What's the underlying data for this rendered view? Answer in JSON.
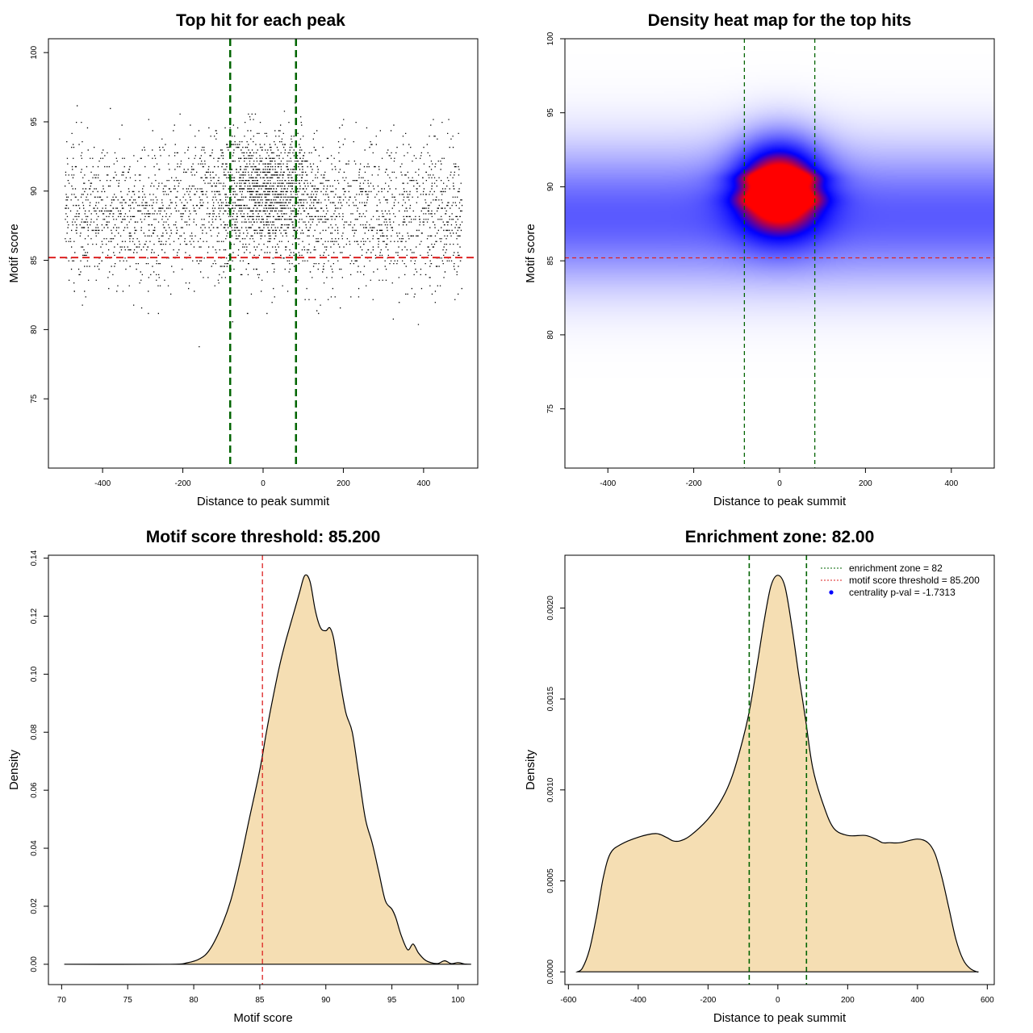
{
  "colors": {
    "points": "#000000",
    "threshold": "#dd2222",
    "zone": "#006400",
    "fill": "#f5deb3",
    "heat_low": "#ffffff",
    "heat_mid": "#0000ff",
    "heat_high": "#ff0000"
  },
  "chart_data": [
    {
      "type": "scatter",
      "title": "Top hit for each peak",
      "xlabel": "Distance to peak summit",
      "ylabel": "Motif score",
      "xlim": [
        -535,
        535
      ],
      "ylim": [
        70,
        101
      ],
      "xticks": [
        -400,
        -200,
        0,
        200,
        400
      ],
      "yticks": [
        75,
        80,
        85,
        90,
        95,
        100
      ],
      "hline": 85.2,
      "vlines": [
        -82,
        82
      ],
      "n_points": 16000,
      "x_range": [
        -495,
        495
      ],
      "score_mean": 88.5,
      "score_sd": 2.6,
      "central_fraction": 0.28,
      "central_sd": 70,
      "central_score_mean": 90.3,
      "grid": false
    },
    {
      "type": "heatmap",
      "title": "Density heat map for the top hits",
      "xlabel": "Distance to peak summit",
      "ylabel": "Motif score",
      "xlim": [
        -500,
        500
      ],
      "ylim": [
        71,
        100
      ],
      "xticks": [
        -400,
        -200,
        0,
        200,
        400
      ],
      "yticks": [
        75,
        80,
        85,
        90,
        95,
        100
      ],
      "hline": 85.2,
      "vlines": [
        -82,
        82
      ],
      "background_band": {
        "center": 88,
        "spread": 3.2,
        "strength": 0.55
      },
      "central_blob": {
        "x_center": 0,
        "x_spread": 72,
        "score_center": 90.0,
        "score_spread": 2.3,
        "strength": 1.1
      },
      "red_peaks": [
        90.6,
        89.1
      ],
      "grid": false
    },
    {
      "type": "area",
      "title": "Motif score threshold: 85.200",
      "xlabel": "Motif score",
      "ylabel": "Density",
      "xlim": [
        69,
        101.5
      ],
      "ylim": [
        -0.007,
        0.141
      ],
      "xticks": [
        70,
        75,
        80,
        85,
        90,
        95,
        100
      ],
      "yticks": [
        0.0,
        0.02,
        0.04,
        0.06,
        0.08,
        0.1,
        0.12,
        0.14
      ],
      "ytick_labels": [
        "0.00",
        "0.02",
        "0.04",
        "0.06",
        "0.08",
        "0.10",
        "0.12",
        "0.14"
      ],
      "vline": 85.2,
      "x": [
        70.2,
        78,
        79.5,
        80.5,
        81.2,
        82,
        82.8,
        83.5,
        84.2,
        85,
        85.5,
        86,
        86.5,
        87,
        87.5,
        88,
        88.4,
        88.8,
        89.2,
        89.6,
        90,
        90.3,
        90.6,
        91,
        91.5,
        92,
        92.5,
        93,
        93.5,
        94,
        94.5,
        95,
        95.3,
        95.7,
        96.2,
        96.6,
        97,
        97.5,
        98,
        98.5,
        99,
        99.5,
        100,
        100.5,
        101
      ],
      "y": [
        0.0,
        0.0,
        0.0005,
        0.002,
        0.005,
        0.012,
        0.022,
        0.035,
        0.05,
        0.067,
        0.08,
        0.092,
        0.103,
        0.112,
        0.12,
        0.128,
        0.134,
        0.132,
        0.122,
        0.116,
        0.115,
        0.116,
        0.112,
        0.1,
        0.087,
        0.08,
        0.065,
        0.05,
        0.042,
        0.032,
        0.022,
        0.019,
        0.016,
        0.01,
        0.005,
        0.007,
        0.004,
        0.0015,
        0.0005,
        0.0003,
        0.0012,
        0.0002,
        0.0006,
        0.0001,
        0.0
      ],
      "grid": false
    },
    {
      "type": "area",
      "title": "Enrichment zone: 82.00",
      "xlabel": "Distance to peak summit",
      "ylabel": "Density",
      "xlim": [
        -610,
        620
      ],
      "ylim": [
        -7e-05,
        0.00229
      ],
      "xticks": [
        -600,
        -400,
        -200,
        0,
        200,
        400,
        600
      ],
      "yticks": [
        0.0,
        0.0005,
        0.001,
        0.0015,
        0.002
      ],
      "ytick_labels": [
        "0.0000",
        "0.0005",
        "0.0010",
        "0.0015",
        "0.0020"
      ],
      "vlines": [
        -82,
        82
      ],
      "x": [
        -575,
        -560,
        -540,
        -520,
        -500,
        -480,
        -450,
        -400,
        -350,
        -320,
        -300,
        -280,
        -250,
        -200,
        -160,
        -130,
        -100,
        -80,
        -60,
        -40,
        -20,
        0,
        20,
        40,
        60,
        80,
        100,
        130,
        160,
        200,
        250,
        280,
        300,
        320,
        350,
        400,
        430,
        450,
        470,
        490,
        510,
        530,
        550,
        570,
        575
      ],
      "y": [
        0.0,
        2e-05,
        0.00012,
        0.0003,
        0.00052,
        0.00065,
        0.0007,
        0.00074,
        0.00076,
        0.00074,
        0.00072,
        0.00072,
        0.00075,
        0.00084,
        0.00095,
        0.00108,
        0.00128,
        0.00145,
        0.00168,
        0.00192,
        0.00212,
        0.00218,
        0.00212,
        0.0019,
        0.00163,
        0.00138,
        0.00112,
        0.00092,
        0.00079,
        0.00075,
        0.00075,
        0.00073,
        0.00071,
        0.00071,
        0.00071,
        0.00073,
        0.00071,
        0.00065,
        0.00052,
        0.00035,
        0.00018,
        7e-05,
        2e-05,
        0.0,
        0.0
      ],
      "legend_position": "top-right",
      "legend": [
        {
          "label": "enrichment zone = 82",
          "style": "dotted",
          "color": "#006400"
        },
        {
          "label": "motif score threshold = 85.200",
          "style": "dotted",
          "color": "#dd2222"
        },
        {
          "label": "centrality p-val = -1.7313",
          "style": "point",
          "color": "#0000ff"
        }
      ],
      "grid": false
    }
  ]
}
